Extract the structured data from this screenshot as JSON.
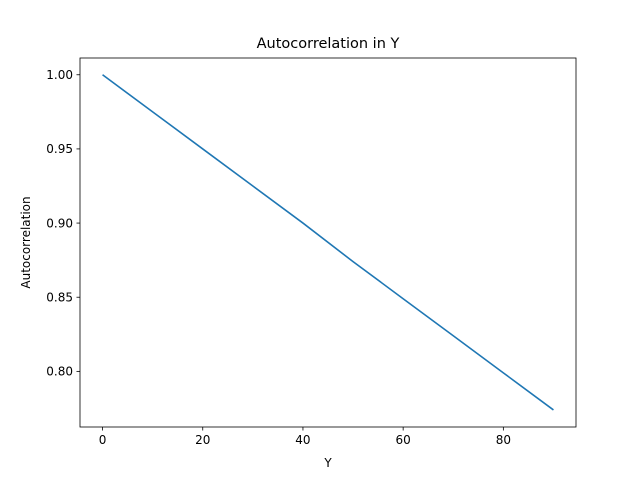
{
  "chart_data": {
    "type": "line",
    "title": "Autocorrelation in Y",
    "xlabel": "Y",
    "ylabel": "Autocorrelation",
    "xlim": [
      -4.5,
      94.5
    ],
    "ylim": [
      0.7625,
      1.0113
    ],
    "xticks": [
      0,
      20,
      40,
      60,
      80
    ],
    "xtick_labels": [
      "0",
      "20",
      "40",
      "60",
      "80"
    ],
    "yticks": [
      0.8,
      0.85,
      0.9,
      0.95,
      1.0
    ],
    "ytick_labels": [
      "0.80",
      "0.85",
      "0.90",
      "0.95",
      "1.00"
    ],
    "grid": false,
    "series": [
      {
        "color": "#1f77b4",
        "x": [
          0,
          10,
          20,
          30,
          40,
          50,
          60,
          70,
          80,
          90
        ],
        "y": [
          1.0,
          0.975,
          0.95,
          0.925,
          0.9,
          0.874,
          0.849,
          0.824,
          0.799,
          0.774
        ]
      }
    ]
  }
}
